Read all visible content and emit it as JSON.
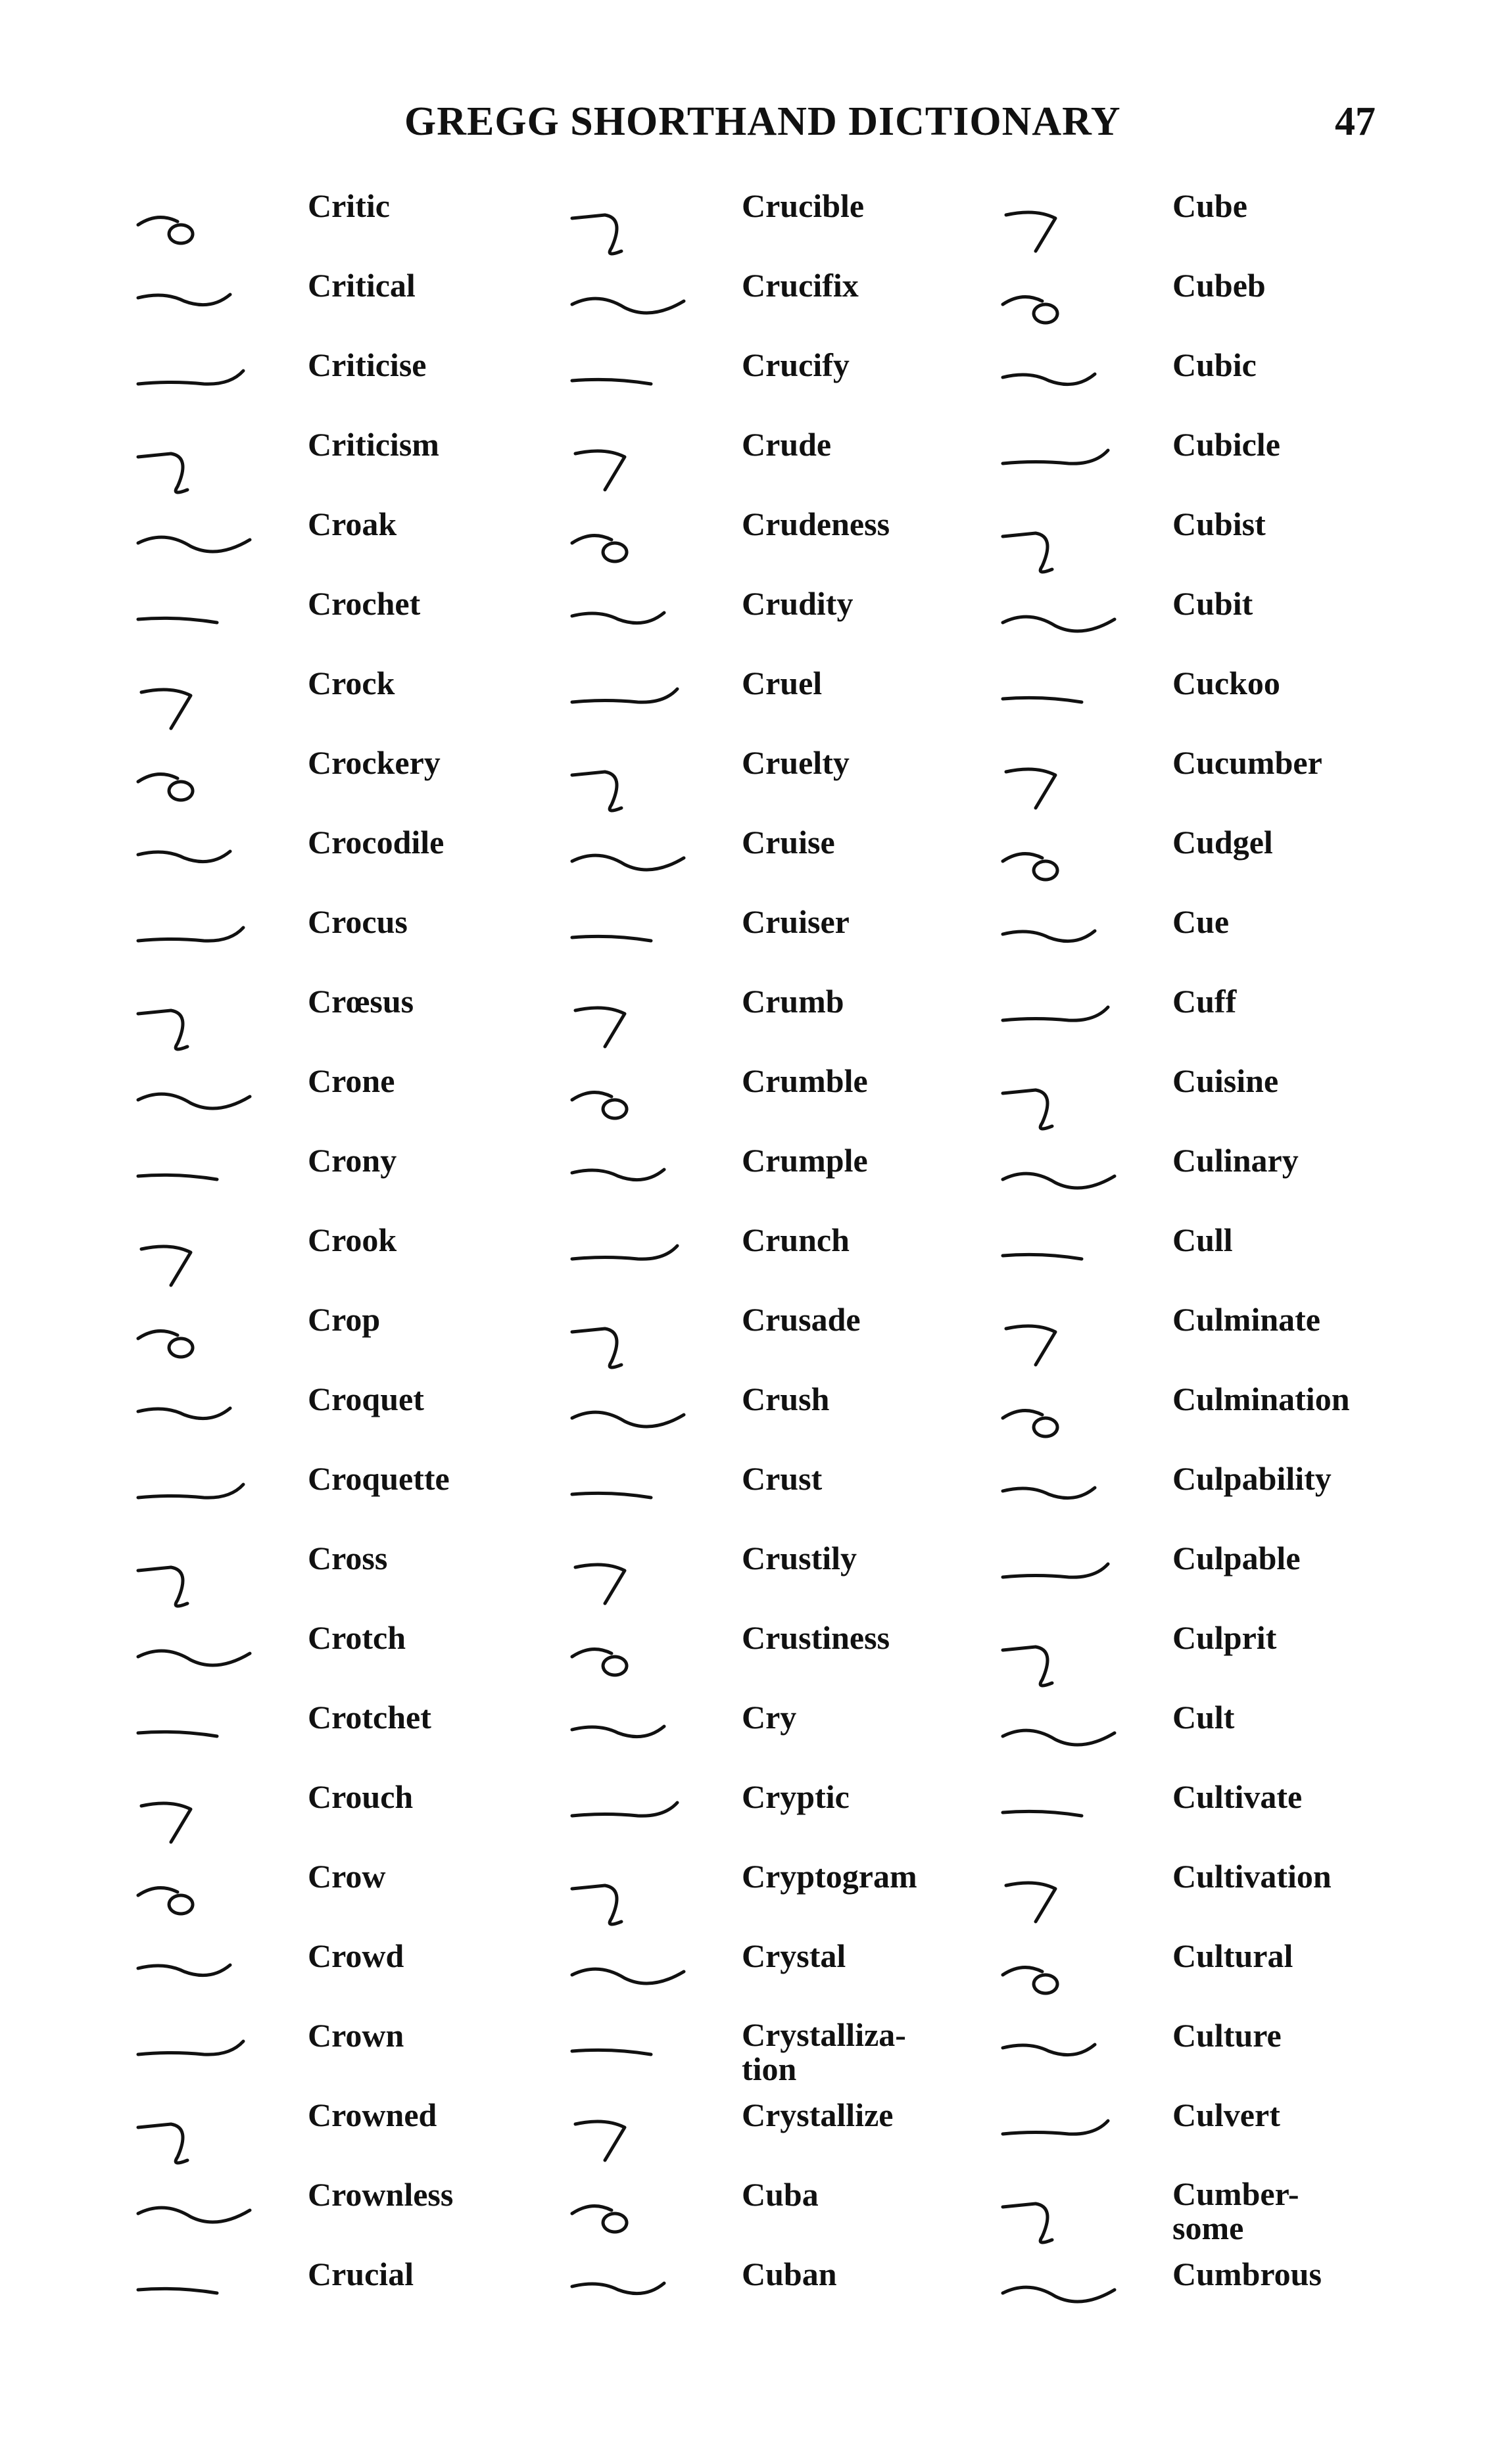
{
  "header": {
    "title": "GREGG SHORTHAND DICTIONARY",
    "page_number": "47"
  },
  "columns": [
    {
      "entries": [
        {
          "word": "Critic"
        },
        {
          "word": "Critical"
        },
        {
          "word": "Criticise"
        },
        {
          "word": "Criticism"
        },
        {
          "word": "Croak"
        },
        {
          "word": "Crochet"
        },
        {
          "word": "Crock"
        },
        {
          "word": "Crockery"
        },
        {
          "word": "Crocodile"
        },
        {
          "word": "Crocus"
        },
        {
          "word": "Crœsus"
        },
        {
          "word": "Crone"
        },
        {
          "word": "Crony"
        },
        {
          "word": "Crook"
        },
        {
          "word": "Crop"
        },
        {
          "word": "Croquet"
        },
        {
          "word": "Croquette"
        },
        {
          "word": "Cross"
        },
        {
          "word": "Crotch"
        },
        {
          "word": "Crotchet"
        },
        {
          "word": "Crouch"
        },
        {
          "word": "Crow"
        },
        {
          "word": "Crowd"
        },
        {
          "word": "Crown"
        },
        {
          "word": "Crowned"
        },
        {
          "word": "Crownless"
        },
        {
          "word": "Crucial"
        }
      ]
    },
    {
      "entries": [
        {
          "word": "Crucible"
        },
        {
          "word": "Crucifix"
        },
        {
          "word": "Crucify"
        },
        {
          "word": "Crude"
        },
        {
          "word": "Crudeness"
        },
        {
          "word": "Crudity"
        },
        {
          "word": "Cruel"
        },
        {
          "word": "Cruelty"
        },
        {
          "word": "Cruise"
        },
        {
          "word": "Cruiser"
        },
        {
          "word": "Crumb"
        },
        {
          "word": "Crumble"
        },
        {
          "word": "Crumple"
        },
        {
          "word": "Crunch"
        },
        {
          "word": "Crusade"
        },
        {
          "word": "Crush"
        },
        {
          "word": "Crust"
        },
        {
          "word": "Crustily"
        },
        {
          "word": "Crustiness"
        },
        {
          "word": "Cry"
        },
        {
          "word": "Cryptic"
        },
        {
          "word": "Cryptogram"
        },
        {
          "word": "Crystal"
        },
        {
          "word": "Crystalliza-\ntion"
        },
        {
          "word": "Crystallize"
        },
        {
          "word": "Cuba"
        },
        {
          "word": "Cuban"
        }
      ]
    },
    {
      "entries": [
        {
          "word": "Cube"
        },
        {
          "word": "Cubeb"
        },
        {
          "word": "Cubic"
        },
        {
          "word": "Cubicle"
        },
        {
          "word": "Cubist"
        },
        {
          "word": "Cubit"
        },
        {
          "word": "Cuckoo"
        },
        {
          "word": "Cucumber"
        },
        {
          "word": "Cudgel"
        },
        {
          "word": "Cue"
        },
        {
          "word": "Cuff"
        },
        {
          "word": "Cuisine"
        },
        {
          "word": "Culinary"
        },
        {
          "word": "Cull"
        },
        {
          "word": "Culminate"
        },
        {
          "word": "Culmination"
        },
        {
          "word": "Culpability"
        },
        {
          "word": "Culpable"
        },
        {
          "word": "Culprit"
        },
        {
          "word": "Cult"
        },
        {
          "word": "Cultivate"
        },
        {
          "word": "Cultivation"
        },
        {
          "word": "Cultural"
        },
        {
          "word": "Culture"
        },
        {
          "word": "Culvert"
        },
        {
          "word": "Cumber-\nsome"
        },
        {
          "word": "Cumbrous"
        }
      ]
    }
  ]
}
